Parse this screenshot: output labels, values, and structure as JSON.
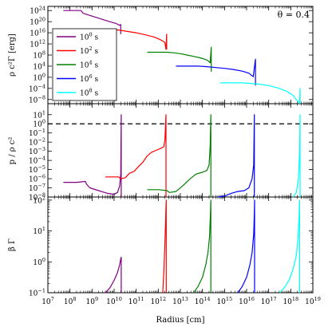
{
  "chart_data": {
    "type": "line",
    "annotation": "θ = 0.4",
    "xlabel": "Radius [cm]",
    "xscale": "log",
    "xlim_log10": [
      7,
      19
    ],
    "x_tick_labels": [
      {
        "exp": 7,
        "base": "10",
        "sup": "7"
      },
      {
        "exp": 8,
        "base": "10",
        "sup": "8"
      },
      {
        "exp": 9,
        "base": "10",
        "sup": "9"
      },
      {
        "exp": 10,
        "base": "10",
        "sup": "10"
      },
      {
        "exp": 11,
        "base": "10",
        "sup": "11"
      },
      {
        "exp": 12,
        "base": "10",
        "sup": "12"
      },
      {
        "exp": 13,
        "base": "10",
        "sup": "13"
      },
      {
        "exp": 14,
        "base": "10",
        "sup": "14"
      },
      {
        "exp": 15,
        "base": "10",
        "sup": "15"
      },
      {
        "exp": 16,
        "base": "10",
        "sup": "16"
      },
      {
        "exp": 17,
        "base": "10",
        "sup": "17"
      },
      {
        "exp": 18,
        "base": "10",
        "sup": "18"
      },
      {
        "exp": 19,
        "base": "10",
        "sup": "19"
      }
    ],
    "legend": {
      "placement": "upper-left of top panel",
      "entries": [
        {
          "base": "10",
          "sup": "0",
          "unit": " s",
          "color": "#800080"
        },
        {
          "base": "10",
          "sup": "2",
          "unit": " s",
          "color": "#ff0000"
        },
        {
          "base": "10",
          "sup": "4",
          "unit": " s",
          "color": "#008000"
        },
        {
          "base": "10",
          "sup": "6",
          "unit": " s",
          "color": "#0000ff"
        },
        {
          "base": "10",
          "sup": "8",
          "unit": " s",
          "color": "#00ffff"
        }
      ]
    },
    "panels": [
      {
        "id": "energy",
        "ylabel": "ρ c²Γ [erg]",
        "yscale": "log",
        "ylim_log10": [
          -9.5,
          25.5
        ],
        "y_tick_labels": [
          {
            "exp": 24,
            "base": "10",
            "sup": "24"
          },
          {
            "exp": 20,
            "base": "10",
            "sup": "20"
          },
          {
            "exp": 16,
            "base": "10",
            "sup": "16"
          },
          {
            "exp": 12,
            "base": "10",
            "sup": "12"
          },
          {
            "exp": 8,
            "base": "10",
            "sup": "8"
          },
          {
            "exp": 4,
            "base": "10",
            "sup": "4"
          },
          {
            "exp": 0,
            "base": "10",
            "sup": "0"
          },
          {
            "exp": -4,
            "base": "10",
            "sup": "−4"
          },
          {
            "exp": -8,
            "base": "10",
            "sup": "−8"
          }
        ],
        "series": [
          {
            "color": "#800080",
            "log_x": [
              7.7,
              8.5,
              8.6,
              9.0,
              9.4,
              9.8,
              10.1,
              10.25,
              10.3,
              10.3
            ],
            "log_y": [
              24.0,
              24.0,
              23.0,
              22.0,
              21.0,
              20.0,
              19.3,
              18.7,
              19.0,
              15.5
            ]
          },
          {
            "color": "#ff0000",
            "log_x": [
              9.9,
              10.2,
              10.6,
              11.0,
              11.4,
              11.8,
              12.1,
              12.3,
              12.35,
              12.38,
              12.38
            ],
            "log_y": [
              17.0,
              17.0,
              16.5,
              16.0,
              15.3,
              14.5,
              13.5,
              12.5,
              10.0,
              15.5,
              10.0
            ]
          },
          {
            "color": "#008000",
            "log_x": [
              11.5,
              12.0,
              12.4,
              12.7,
              13.0,
              13.3,
              13.6,
              13.9,
              14.1,
              14.25,
              14.35,
              14.4,
              14.4
            ],
            "log_y": [
              9.0,
              9.0,
              9.0,
              8.8,
              8.5,
              8.0,
              7.5,
              7.0,
              6.5,
              6.0,
              5.2,
              10.8,
              2.0
            ]
          },
          {
            "color": "#0000ff",
            "log_x": [
              12.8,
              13.4,
              13.8,
              14.2,
              14.6,
              15.0,
              15.4,
              15.8,
              16.1,
              16.3,
              16.4,
              16.4
            ],
            "log_y": [
              4.0,
              4.0,
              4.0,
              3.8,
              3.5,
              3.2,
              2.8,
              2.2,
              1.5,
              0.2,
              6.5,
              -3.0
            ]
          },
          {
            "color": "#00ffff",
            "log_x": [
              14.8,
              15.4,
              15.8,
              16.2,
              16.6,
              17.0,
              17.4,
              17.8,
              18.1,
              18.3,
              18.4,
              18.42,
              18.42
            ],
            "log_y": [
              -2.0,
              -2.0,
              -2.0,
              -2.2,
              -2.5,
              -3.0,
              -3.8,
              -5.0,
              -6.5,
              -8.5,
              -9.3,
              -4.0,
              -9.5
            ]
          }
        ]
      },
      {
        "id": "pressure",
        "ylabel": "p / ρ c²",
        "yscale": "log",
        "ylim_log10": [
          -8,
          2.2
        ],
        "reference_line": {
          "log_y": 0,
          "style": "dashed",
          "color": "#000000"
        },
        "y_tick_labels": [
          {
            "exp": 1,
            "base": "10",
            "sup": "1"
          },
          {
            "exp": 0,
            "base": "10",
            "sup": "0"
          },
          {
            "exp": -1,
            "base": "10",
            "sup": "−1"
          },
          {
            "exp": -2,
            "base": "10",
            "sup": "−2"
          },
          {
            "exp": -3,
            "base": "10",
            "sup": "−3"
          },
          {
            "exp": -4,
            "base": "10",
            "sup": "−4"
          },
          {
            "exp": -5,
            "base": "10",
            "sup": "−5"
          },
          {
            "exp": -6,
            "base": "10",
            "sup": "−6"
          },
          {
            "exp": -7,
            "base": "10",
            "sup": "−7"
          },
          {
            "exp": -8,
            "base": "10",
            "sup": "−8"
          }
        ],
        "series": [
          {
            "color": "#800080",
            "log_x": [
              7.7,
              8.3,
              8.7,
              8.75,
              8.9,
              9.3,
              9.7,
              10.0,
              10.15,
              10.25,
              10.3,
              10.32,
              10.32
            ],
            "log_y": [
              -6.4,
              -6.4,
              -6.3,
              -6.6,
              -7.0,
              -7.3,
              -7.6,
              -7.7,
              -7.5,
              -6.8,
              -5.5,
              1.0,
              -8.0
            ]
          },
          {
            "color": "#ff0000",
            "log_x": [
              9.6,
              10.2,
              10.3,
              10.5,
              10.7,
              10.9,
              11.1,
              11.3,
              11.5,
              11.7,
              11.9,
              12.1,
              12.25,
              12.3,
              12.35,
              12.35
            ],
            "log_y": [
              -5.8,
              -5.8,
              -6.0,
              -5.9,
              -5.4,
              -5.2,
              -4.7,
              -4.2,
              -3.5,
              -3.1,
              -2.9,
              -2.7,
              -2.5,
              -1.8,
              1.0,
              -8.0
            ]
          },
          {
            "color": "#008000",
            "log_x": [
              11.5,
              12.0,
              12.4,
              12.5,
              12.8,
              13.1,
              13.4,
              13.7,
              14.0,
              14.2,
              14.3,
              14.35,
              14.38,
              14.38
            ],
            "log_y": [
              -7.2,
              -7.2,
              -7.3,
              -7.5,
              -7.4,
              -6.8,
              -6.1,
              -5.5,
              -5.3,
              -5.1,
              -4.5,
              -2.5,
              1.0,
              -8.0
            ]
          },
          {
            "color": "#0000ff",
            "log_x": [
              14.7,
              15.0,
              15.3,
              15.6,
              15.9,
              16.1,
              16.25,
              16.32,
              16.35,
              16.35
            ],
            "log_y": [
              -8.0,
              -7.9,
              -7.6,
              -7.4,
              -7.3,
              -7.0,
              -6.0,
              -4.5,
              1.0,
              -8.0
            ]
          },
          {
            "color": "#00ffff",
            "log_x": [
              18.1,
              18.25,
              18.35,
              18.4,
              18.42,
              18.42
            ],
            "log_y": [
              -8.0,
              -7.5,
              -6.0,
              -3.0,
              1.0,
              -8.0
            ]
          }
        ]
      },
      {
        "id": "beta-gamma",
        "ylabel": "β Γ",
        "yscale": "log",
        "ylim_log10": [
          -1,
          2.1
        ],
        "y_tick_labels": [
          {
            "exp": 2,
            "base": "10",
            "sup": "2"
          },
          {
            "exp": 1,
            "base": "10",
            "sup": "1"
          },
          {
            "exp": 0,
            "base": "10",
            "sup": "0"
          },
          {
            "exp": -1,
            "base": "10",
            "sup": "−1"
          }
        ],
        "series": [
          {
            "color": "#800080",
            "log_x": [
              9.6,
              9.8,
              10.0,
              10.15,
              10.25,
              10.3,
              10.32,
              10.32
            ],
            "log_y": [
              -1.0,
              -0.85,
              -0.6,
              -0.35,
              -0.1,
              0.1,
              0.15,
              -1.0
            ]
          },
          {
            "color": "#ff0000",
            "log_x": [
              12.2,
              12.26,
              12.3,
              12.33,
              12.35,
              12.36,
              12.36
            ],
            "log_y": [
              -1.0,
              -0.2,
              0.6,
              1.3,
              1.8,
              2.0,
              -1.0
            ]
          },
          {
            "color": "#008000",
            "log_x": [
              13.6,
              13.8,
              14.0,
              14.15,
              14.25,
              14.32,
              14.36,
              14.38,
              14.38
            ],
            "log_y": [
              -1.0,
              -0.8,
              -0.5,
              -0.1,
              0.3,
              0.8,
              1.5,
              2.0,
              -1.0
            ]
          },
          {
            "color": "#0000ff",
            "log_x": [
              15.6,
              15.8,
              16.0,
              16.15,
              16.25,
              16.32,
              16.35,
              16.36,
              16.36
            ],
            "log_y": [
              -1.0,
              -0.8,
              -0.5,
              -0.1,
              0.3,
              0.9,
              1.6,
              2.0,
              -1.0
            ]
          },
          {
            "color": "#00ffff",
            "log_x": [
              17.5,
              17.75,
              17.95,
              18.1,
              18.25,
              18.33,
              18.38,
              18.4,
              18.4
            ],
            "log_y": [
              -1.0,
              -0.8,
              -0.55,
              -0.25,
              0.2,
              0.8,
              1.5,
              2.0,
              -1.0
            ]
          }
        ]
      }
    ]
  }
}
